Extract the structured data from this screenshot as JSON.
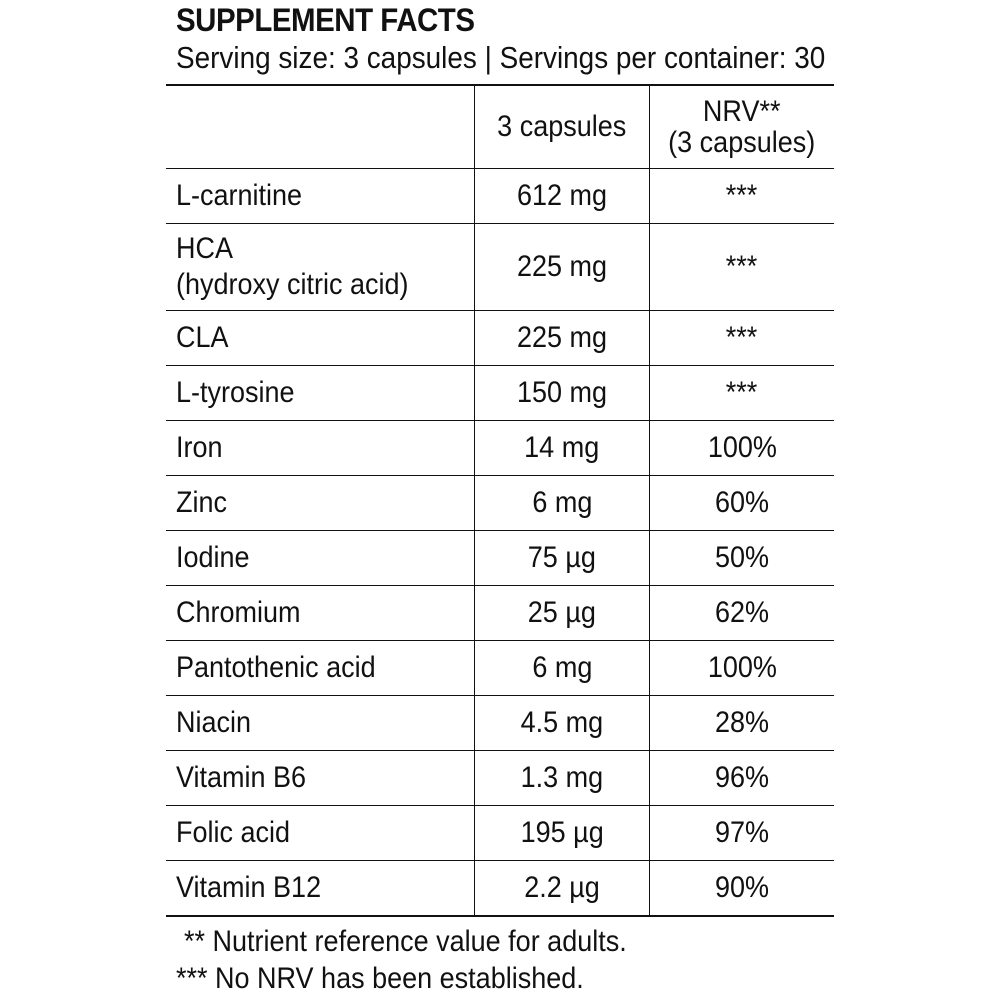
{
  "label": {
    "title": "SUPPLEMENT FACTS",
    "serving": "Serving size: 3 capsules | Servings per container: 30"
  },
  "table": {
    "header": {
      "col1": "",
      "col2": "3 capsules",
      "col3_line1": "NRV**",
      "col3_line2": "(3 capsules)"
    },
    "rows": [
      {
        "name": "L-carnitine",
        "amount": "612 mg",
        "nrv": "***"
      },
      {
        "name": "HCA",
        "name_line2": "(hydroxy citric acid)",
        "amount": "225 mg",
        "nrv": "***"
      },
      {
        "name": "CLA",
        "amount": "225 mg",
        "nrv": "***"
      },
      {
        "name": "L-tyrosine",
        "amount": "150 mg",
        "nrv": "***"
      },
      {
        "name": "Iron",
        "amount": "14 mg",
        "nrv": "100%"
      },
      {
        "name": "Zinc",
        "amount": "6 mg",
        "nrv": "60%"
      },
      {
        "name": "Iodine",
        "amount": "75 µg",
        "nrv": "50%"
      },
      {
        "name": "Chromium",
        "amount": "25 µg",
        "nrv": "62%"
      },
      {
        "name": "Pantothenic acid",
        "amount": "6 mg",
        "nrv": "100%"
      },
      {
        "name": "Niacin",
        "amount": "4.5 mg",
        "nrv": "28%"
      },
      {
        "name": "Vitamin B6",
        "amount": "1.3 mg",
        "nrv": "96%"
      },
      {
        "name": "Folic acid",
        "amount": "195 µg",
        "nrv": "97%"
      },
      {
        "name": "Vitamin B12",
        "amount": "2.2 µg",
        "nrv": "90%"
      }
    ]
  },
  "footnotes": {
    "nrv_note": "** Nutrient reference value for adults.",
    "no_nrv_note": "*** No NRV has been established."
  }
}
